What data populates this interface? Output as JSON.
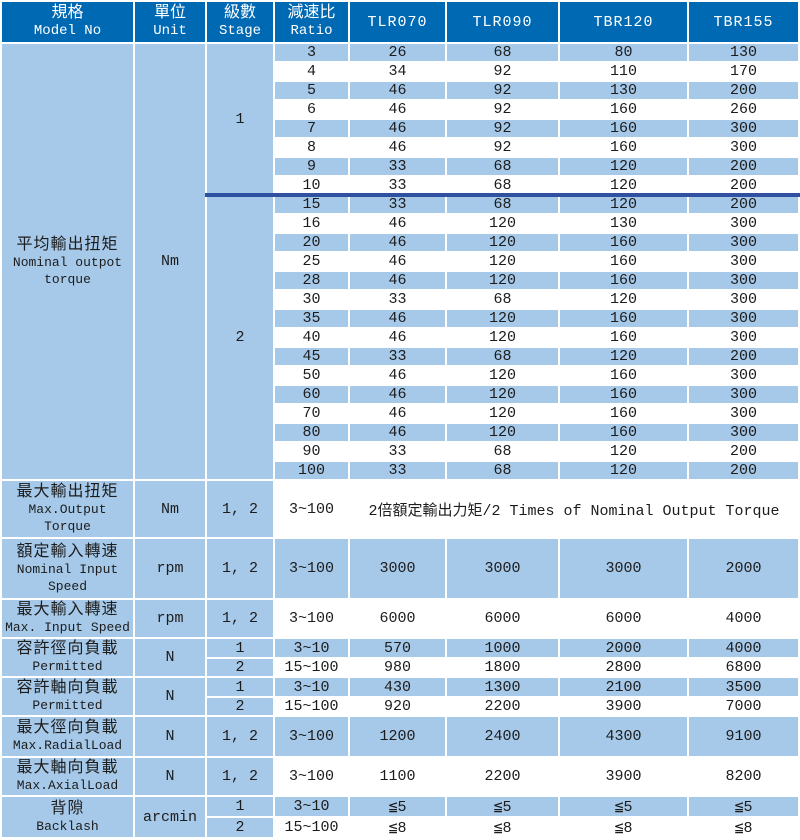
{
  "colors": {
    "header_bg": "#0069b4",
    "header_text": "#ffffff",
    "row_blue": "#a6c9e9",
    "row_white": "#ffffff",
    "stage_divider": "#3050a0",
    "body_text": "#1c1c1c"
  },
  "table": {
    "header": {
      "spec": {
        "zh": "規格",
        "en": "Model No"
      },
      "unit": {
        "zh": "單位",
        "en": "Unit"
      },
      "stage": {
        "zh": "級數",
        "en": "Stage"
      },
      "ratio": {
        "zh": "減速比",
        "en": "Ratio"
      },
      "models": [
        "TLR070",
        "TLR090",
        "TBR120",
        "TBR155"
      ]
    },
    "nominal_output": {
      "label": {
        "zh": "平均輸出扭矩",
        "en": "Nominal outpot\ntorque"
      },
      "unit": "Nm",
      "stages": [
        {
          "stage": "1",
          "rows": [
            [
              "3",
              "26",
              "68",
              "80",
              "130"
            ],
            [
              "4",
              "34",
              "92",
              "110",
              "170"
            ],
            [
              "5",
              "46",
              "92",
              "130",
              "200"
            ],
            [
              "6",
              "46",
              "92",
              "160",
              "260"
            ],
            [
              "7",
              "46",
              "92",
              "160",
              "300"
            ],
            [
              "8",
              "46",
              "92",
              "160",
              "300"
            ],
            [
              "9",
              "33",
              "68",
              "120",
              "200"
            ],
            [
              "10",
              "33",
              "68",
              "120",
              "200"
            ]
          ]
        },
        {
          "stage": "2",
          "rows": [
            [
              "15",
              "33",
              "68",
              "120",
              "200"
            ],
            [
              "16",
              "46",
              "120",
              "130",
              "300"
            ],
            [
              "20",
              "46",
              "120",
              "160",
              "300"
            ],
            [
              "25",
              "46",
              "120",
              "160",
              "300"
            ],
            [
              "28",
              "46",
              "120",
              "160",
              "300"
            ],
            [
              "30",
              "33",
              "68",
              "120",
              "300"
            ],
            [
              "35",
              "46",
              "120",
              "160",
              "300"
            ],
            [
              "40",
              "46",
              "120",
              "160",
              "300"
            ],
            [
              "45",
              "33",
              "68",
              "120",
              "200"
            ],
            [
              "50",
              "46",
              "120",
              "160",
              "300"
            ],
            [
              "60",
              "46",
              "120",
              "160",
              "300"
            ],
            [
              "70",
              "46",
              "120",
              "160",
              "300"
            ],
            [
              "80",
              "46",
              "120",
              "160",
              "300"
            ],
            [
              "90",
              "33",
              "68",
              "120",
              "200"
            ],
            [
              "100",
              "33",
              "68",
              "120",
              "200"
            ]
          ]
        }
      ]
    },
    "max_output": {
      "label": {
        "zh": "最大輸出扭矩",
        "en": "Max.Output\nTorque"
      },
      "unit": "Nm",
      "stage": "1, 2",
      "ratio": "3~100",
      "merged_note": "2倍額定輸出力矩/2 Times of Nominal Output Torque"
    },
    "nominal_input": {
      "label": {
        "zh": "額定輸入轉速",
        "en": "Nominal Input\nSpeed"
      },
      "unit": "rpm",
      "stage": "1, 2",
      "ratio": "3~100",
      "values": [
        "3000",
        "3000",
        "3000",
        "2000"
      ]
    },
    "max_input": {
      "label": {
        "zh": "最大輸入轉速",
        "en": "Max. Input Speed"
      },
      "unit": "rpm",
      "stage": "1, 2",
      "ratio": "3~100",
      "values": [
        "6000",
        "6000",
        "6000",
        "4000"
      ]
    },
    "radial_permitted": {
      "label": {
        "zh": "容許徑向負載",
        "en": "Permitted"
      },
      "unit": "N",
      "rows": [
        {
          "stage": "1",
          "ratio": "3~10",
          "values": [
            "570",
            "1000",
            "2000",
            "4000"
          ]
        },
        {
          "stage": "2",
          "ratio": "15~100",
          "values": [
            "980",
            "1800",
            "2800",
            "6800"
          ]
        }
      ]
    },
    "axial_permitted": {
      "label": {
        "zh": "容許軸向負載",
        "en": "Permitted"
      },
      "unit": "N",
      "rows": [
        {
          "stage": "1",
          "ratio": "3~10",
          "values": [
            "430",
            "1300",
            "2100",
            "3500"
          ]
        },
        {
          "stage": "2",
          "ratio": "15~100",
          "values": [
            "920",
            "2200",
            "3900",
            "7000"
          ]
        }
      ]
    },
    "max_radial": {
      "label": {
        "zh": "最大徑向負載",
        "en": "Max.RadialLoad"
      },
      "unit": "N",
      "stage": "1, 2",
      "ratio": "3~100",
      "values": [
        "1200",
        "2400",
        "4300",
        "9100"
      ]
    },
    "max_axial": {
      "label": {
        "zh": "最大軸向負載",
        "en": "Max.AxialLoad"
      },
      "unit": "N",
      "stage": "1, 2",
      "ratio": "3~100",
      "values": [
        "1100",
        "2200",
        "3900",
        "8200"
      ]
    },
    "backlash": {
      "label": {
        "zh": "背隙",
        "en": "Backlash"
      },
      "unit": "arcmin",
      "rows": [
        {
          "stage": "1",
          "ratio": "3~10",
          "values": [
            "≦5",
            "≦5",
            "≦5",
            "≦5"
          ]
        },
        {
          "stage": "2",
          "ratio": "15~100",
          "values": [
            "≦8",
            "≦8",
            "≦8",
            "≦8"
          ]
        }
      ]
    }
  }
}
